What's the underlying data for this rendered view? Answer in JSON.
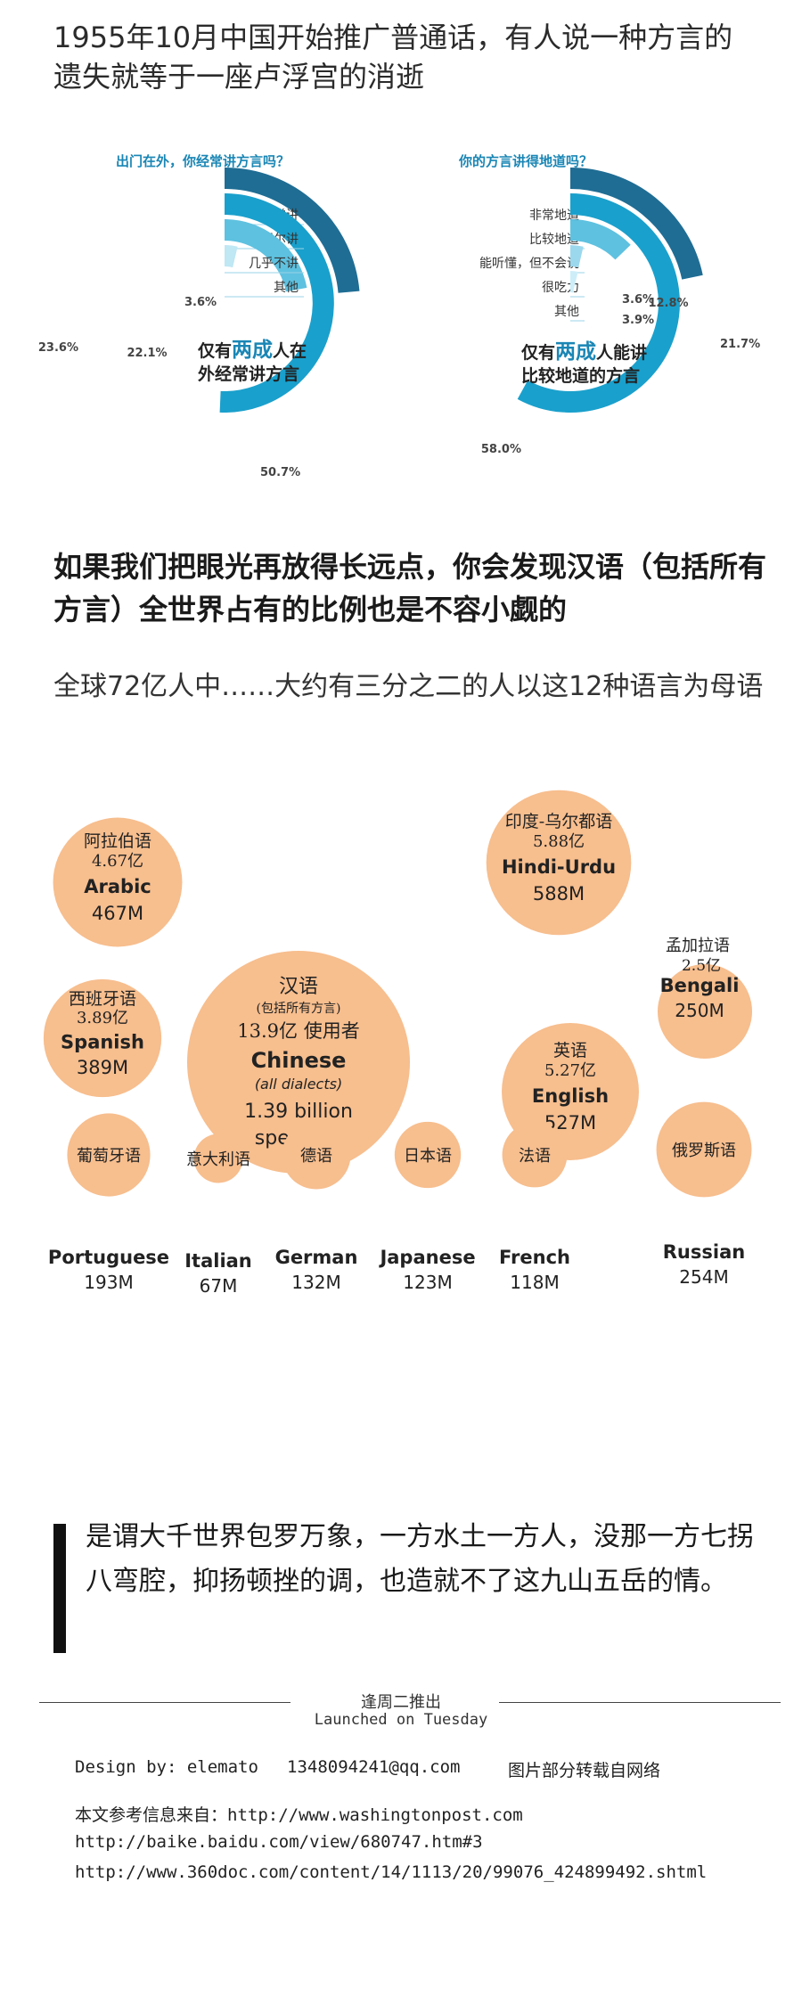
{
  "intro": {
    "heading": "1955年10月中国开始推广普通话，有人说一种方言的遗失就等于一座卢浮宫的消逝"
  },
  "chart_data": [
    {
      "type": "donut",
      "title": "出门在外，你经常讲方言吗？",
      "categories": [
        "经常讲",
        "偶尔讲",
        "几乎不讲",
        "其他"
      ],
      "values": [
        23.6,
        50.7,
        22.1,
        3.6
      ],
      "value_labels": [
        "23.6%",
        "50.7%",
        "22.1%",
        "3.6%"
      ],
      "colors": [
        "#1f6d94",
        "#1aa0cc",
        "#5ec1e0",
        "#bfe7f4"
      ],
      "annotation": {
        "line1_prefix": "仅有",
        "highlight": "两成",
        "line1_suffix": "人在",
        "line2": "外经常讲方言"
      }
    },
    {
      "type": "donut",
      "title": "你的方言讲得地道吗？",
      "categories": [
        "非常地道",
        "比较地道",
        "能听懂，但不会说",
        "很吃力",
        "其他"
      ],
      "values": [
        21.7,
        58.0,
        12.8,
        3.6,
        3.9
      ],
      "value_labels": [
        "21.7%",
        "58.0%",
        "12.8%",
        "3.6%",
        "3.9%"
      ],
      "colors": [
        "#1f6d94",
        "#1aa0cc",
        "#5ec1e0",
        "#9bd8ee",
        "#cdeef8"
      ],
      "annotation": {
        "line1_prefix": "仅有",
        "highlight": "两成",
        "line1_suffix": "人能讲",
        "line2": "比较地道的方言"
      }
    },
    {
      "type": "bubble",
      "categories": [
        "Chinese",
        "Hindi-Urdu",
        "English",
        "Arabic",
        "Spanish",
        "Russian",
        "Bengali",
        "Portuguese",
        "German",
        "Japanese",
        "French",
        "Italian"
      ],
      "values_millions": [
        1390,
        588,
        527,
        467,
        389,
        254,
        250,
        193,
        132,
        123,
        118,
        67
      ],
      "items": [
        {
          "zh": "汉语",
          "note": "(包括所有方言)",
          "zh_count": "13.9亿 使用者",
          "en": "Chinese",
          "en_note": "(all dialects)",
          "count1": "1.39 billion",
          "count2": "speakers"
        },
        {
          "zh": "阿拉伯语",
          "zh_count": "4.67亿",
          "en": "Arabic",
          "count": "467M"
        },
        {
          "zh": "西班牙语",
          "zh_count": "3.89亿",
          "en": "Spanish",
          "count": "389M"
        },
        {
          "zh": "印度-乌尔都语",
          "zh_count": "5.88亿",
          "en": "Hindi-Urdu",
          "count": "588M"
        },
        {
          "zh": "孟加拉语",
          "zh_count": "2.5亿",
          "en": "Bengali",
          "count": "250M"
        },
        {
          "zh": "英语",
          "zh_count": "5.27亿",
          "en": "English",
          "count": "527M"
        },
        {
          "zh": "葡萄牙语",
          "en": "Portuguese",
          "count": "193M"
        },
        {
          "zh": "意大利语",
          "en": "Italian",
          "count": "67M"
        },
        {
          "zh": "德语",
          "en": "German",
          "count": "132M"
        },
        {
          "zh": "日本语",
          "en": "Japanese",
          "count": "123M"
        },
        {
          "zh": "法语",
          "en": "French",
          "count": "118M"
        },
        {
          "zh": "俄罗斯语",
          "en": "Russian",
          "count": "254M"
        }
      ],
      "bubble_color": "#f7be8e"
    }
  ],
  "section2": {
    "heading": "如果我们把眼光再放得长远点，你会发现汉语（包括所有方言）全世界占有的比例也是不容小觑的",
    "sub": "全球72亿人中……大约有三分之二的人以这12种语言为母语"
  },
  "quote": {
    "text": "是谓大千世界包罗万象，一方水土一方人，没那一方七拐八弯腔，抑扬顿挫的调，也造就不了这九山五岳的情。"
  },
  "footer": {
    "schedule_zh": "逢周二推出",
    "schedule_en": "Launched on Tuesday",
    "design": "Design by: elemato",
    "email": "1348094241@qq.com",
    "notice": "图片部分转载自网络",
    "ref_label": "本文参考信息来自：",
    "ref1": "http://www.washingtonpost.com",
    "ref2": "http://baike.baidu.com/view/680747.htm#3",
    "ref3": "http://www.360doc.com/content/14/1113/20/99076_424899492.shtml"
  }
}
